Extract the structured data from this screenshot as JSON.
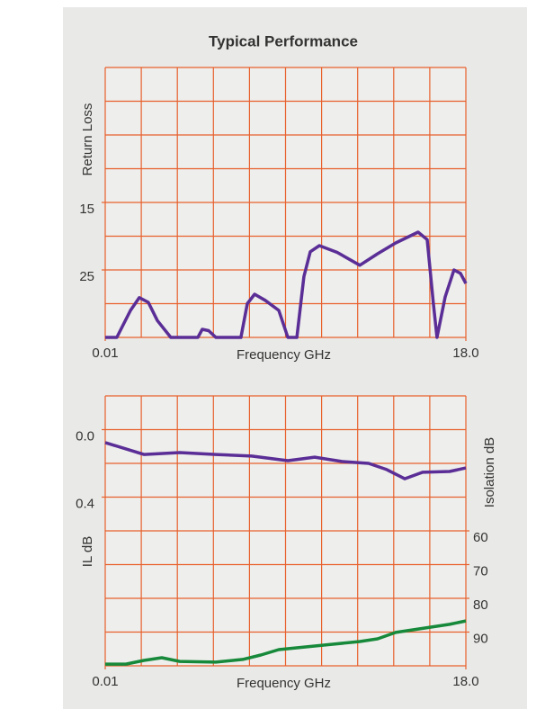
{
  "title": "Typical Performance",
  "chart_data": [
    {
      "type": "line",
      "ylabel": "Return Loss",
      "xlabel": "Frequency GHz",
      "x": [
        0.01,
        0.59,
        1.27,
        1.71,
        2.16,
        2.61,
        3.28,
        4.63,
        4.85,
        5.17,
        5.53,
        6.78,
        7.1,
        7.46,
        7.99,
        8.67,
        9.12,
        9.57,
        9.92,
        10.24,
        10.69,
        11.58,
        12.71,
        13.6,
        14.5,
        15.62,
        16.07,
        16.38,
        16.56,
        16.97,
        17.41,
        17.73,
        18.0
      ],
      "values": [
        35,
        35,
        31,
        29.1,
        29.8,
        32.5,
        35,
        35,
        33.8,
        34,
        35,
        35,
        30,
        28.6,
        29.5,
        31,
        35,
        35,
        26,
        22.3,
        21.4,
        22.4,
        24.3,
        22.6,
        21,
        19.4,
        20.5,
        30,
        35,
        29,
        25,
        25.5,
        27
      ],
      "color": "#5a2e96",
      "xlim": [
        0.01,
        18
      ],
      "xticks": [
        0.01,
        {
          "value": 18,
          "label": "18.0"
        }
      ],
      "ylim": [
        35,
        -5
      ],
      "yticks": [
        15,
        25
      ],
      "grid": true
    },
    {
      "type": "line",
      "ylabel": "IL dB",
      "y2label": "Isolation dB",
      "xlabel": "Frequency GHz",
      "series": [
        {
          "color": "#5a2e96",
          "x": [
            0.01,
            1.94,
            3.73,
            5.53,
            7.32,
            9.12,
            10.46,
            11.81,
            13.15,
            14.05,
            14.95,
            15.84,
            17.19,
            18.0
          ],
          "values": [
            0.077,
            0.147,
            0.136,
            0.147,
            0.157,
            0.184,
            0.163,
            0.189,
            0.2,
            0.237,
            0.291,
            0.253,
            0.248,
            0.227
          ]
        },
        {
          "color": "#17893a",
          "axis": "y2",
          "x": [
            0.01,
            1.04,
            1.94,
            2.83,
            3.73,
            5.53,
            6.87,
            7.77,
            8.67,
            10.01,
            11.36,
            12.71,
            13.6,
            14.5,
            15.4,
            16.29,
            17.19,
            18.0
          ],
          "values": [
            99.5,
            99.5,
            98.4,
            97.6,
            98.7,
            98.9,
            98.1,
            96.8,
            95.2,
            94.4,
            93.6,
            92.8,
            92,
            90.1,
            89.3,
            88.5,
            87.7,
            86.7
          ]
        }
      ],
      "xlim": [
        0.01,
        18
      ],
      "xticks": [
        0.01,
        {
          "value": 18,
          "label": "18.0"
        }
      ],
      "ylim": [
        1.4,
        -0.2
      ],
      "yticks": [
        {
          "value": 0,
          "label": "0.0"
        },
        0.4
      ],
      "y2lim": [
        100,
        20
      ],
      "y2ticks": [
        60,
        70,
        80,
        90
      ],
      "grid": true
    }
  ]
}
